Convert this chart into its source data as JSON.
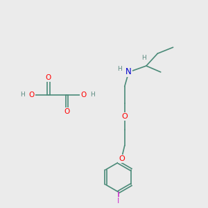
{
  "bg_color": "#ebebeb",
  "bond_color": "#4a8a78",
  "o_color": "#ff0000",
  "n_color": "#0000cc",
  "h_color": "#5a8a80",
  "i_color": "#cc33cc",
  "font_size": 7.0,
  "bond_lw": 1.2,
  "figsize": [
    3.0,
    3.0
  ],
  "dpi": 100,
  "xlim": [
    0,
    10
  ],
  "ylim": [
    0,
    10
  ]
}
